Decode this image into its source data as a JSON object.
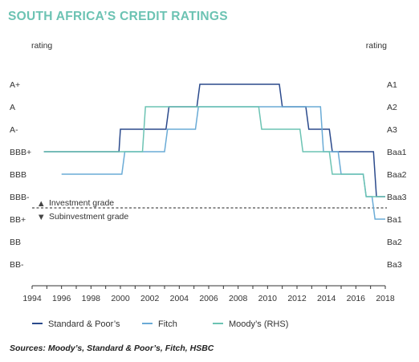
{
  "title": "SOUTH AFRICA’S CREDIT RATINGS",
  "source": "Sources: Moody’s, Standard & Poor’s, Fitch, HSBC",
  "chart_data": {
    "type": "line",
    "title": "SOUTH AFRICA’S CREDIT RATINGS",
    "ylabel_left": "rating",
    "ylabel_right": "rating",
    "xlim": [
      1994,
      2018
    ],
    "x_ticks": [
      1994,
      1996,
      1998,
      2000,
      2002,
      2004,
      2006,
      2008,
      2010,
      2012,
      2014,
      2016,
      2018
    ],
    "y_left_ticks": [
      "A+",
      "A",
      "A-",
      "BBB+",
      "BBB",
      "BBB-",
      "BB+",
      "BB",
      "BB-"
    ],
    "y_right_ticks": [
      "A1",
      "A2",
      "A3",
      "Baa1",
      "Baa2",
      "Baa3",
      "Ba1",
      "Ba2",
      "Ba3"
    ],
    "ylim_level": [
      0,
      9
    ],
    "threshold": {
      "level": 3.5,
      "style": "dashed"
    },
    "annotations": [
      {
        "text": "Investment grade",
        "symbol": "▲",
        "level": 3.75
      },
      {
        "text": "Subinvestment grade",
        "symbol": "▼",
        "level": 3.15
      }
    ],
    "legend_position": "bottom",
    "series": [
      {
        "name": "Standard & Poor’s",
        "color": "#2b4a8c",
        "points": [
          [
            1994.8,
            6
          ],
          [
            1999.9,
            6
          ],
          [
            2000.0,
            7
          ],
          [
            2003.1,
            7
          ],
          [
            2003.3,
            8
          ],
          [
            2005.2,
            8
          ],
          [
            2005.4,
            9
          ],
          [
            2010.8,
            9
          ],
          [
            2011.0,
            8
          ],
          [
            2012.6,
            8
          ],
          [
            2012.8,
            7
          ],
          [
            2014.2,
            7
          ],
          [
            2014.4,
            6
          ],
          [
            2017.2,
            6
          ],
          [
            2017.4,
            4
          ],
          [
            2018.0,
            4
          ]
        ]
      },
      {
        "name": "Fitch",
        "color": "#6aabd6",
        "points": [
          [
            1996.0,
            5
          ],
          [
            2000.1,
            5
          ],
          [
            2000.3,
            6
          ],
          [
            2003.0,
            6
          ],
          [
            2003.2,
            7
          ],
          [
            2005.1,
            7
          ],
          [
            2005.3,
            8
          ],
          [
            2013.6,
            8
          ],
          [
            2013.8,
            6
          ],
          [
            2014.8,
            6
          ],
          [
            2015.0,
            5
          ],
          [
            2016.5,
            5
          ],
          [
            2016.7,
            4
          ],
          [
            2017.1,
            4
          ],
          [
            2017.3,
            3
          ],
          [
            2018.0,
            3
          ]
        ]
      },
      {
        "name": "Moody’s (RHS)",
        "color": "#6cc3b3",
        "points": [
          [
            1994.8,
            6
          ],
          [
            2001.5,
            6
          ],
          [
            2001.7,
            8
          ],
          [
            2009.4,
            8
          ],
          [
            2009.6,
            7
          ],
          [
            2012.2,
            7
          ],
          [
            2012.4,
            6
          ],
          [
            2014.2,
            6
          ],
          [
            2014.4,
            5
          ],
          [
            2016.5,
            5
          ],
          [
            2016.7,
            4
          ],
          [
            2017.3,
            4
          ],
          [
            2017.5,
            4
          ],
          [
            2018.0,
            4
          ]
        ]
      }
    ]
  }
}
